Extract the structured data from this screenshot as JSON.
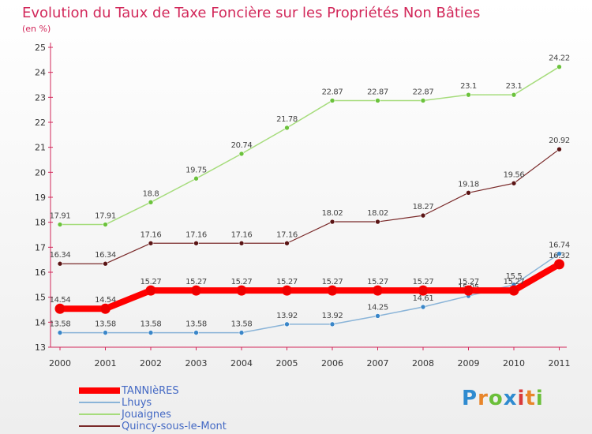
{
  "title": "Evolution du Taux de Taxe Foncière sur les Propriétés Non Bâties",
  "subtitle": "(en %)",
  "logo": "Proxiti",
  "chart_data": {
    "type": "line",
    "x": [
      "2000",
      "2001",
      "2002",
      "2003",
      "2004",
      "2005",
      "2006",
      "2007",
      "2008",
      "2009",
      "2010",
      "2011"
    ],
    "ylim": [
      13,
      25
    ],
    "yticks": [
      "13",
      "14",
      "15",
      "16",
      "17",
      "18",
      "19",
      "20",
      "21",
      "22",
      "23",
      "24",
      "25"
    ],
    "grid": false,
    "legend": "bottom-left",
    "series": [
      {
        "name": "Jouaignes",
        "color": "#a6dc7c",
        "marker": "#6bc23c",
        "width": 1.5,
        "values": [
          17.91,
          17.91,
          18.8,
          19.75,
          20.74,
          21.78,
          22.87,
          22.87,
          22.87,
          23.1,
          23.1,
          24.22
        ],
        "labels": [
          "17.91",
          "17.91",
          "18.8",
          "19.75",
          "20.74",
          "21.78",
          "22.87",
          "22.87",
          "22.87",
          "23.1",
          "23.1",
          "24.22"
        ]
      },
      {
        "name": "Quincy-sous-le-Mont",
        "color": "#7a2a2a",
        "marker": "#5a1414",
        "width": 1.2,
        "values": [
          16.34,
          16.34,
          17.16,
          17.16,
          17.16,
          17.16,
          18.02,
          18.02,
          18.27,
          19.18,
          19.56,
          20.92
        ],
        "labels": [
          "16.34",
          "16.34",
          "17.16",
          "17.16",
          "17.16",
          "17.16",
          "18.02",
          "18.02",
          "18.27",
          "19.18",
          "19.56",
          "20.92"
        ]
      },
      {
        "name": "Lhuys",
        "color": "#8ab4d8",
        "marker": "#3a86c8",
        "width": 1.5,
        "values": [
          13.58,
          13.58,
          13.58,
          13.58,
          13.58,
          13.92,
          13.92,
          14.25,
          14.61,
          15.05,
          15.5,
          16.74
        ],
        "labels": [
          "13.58",
          "13.58",
          "13.58",
          "13.58",
          "13.58",
          "13.92",
          "13.92",
          "14.25",
          "14.61",
          "15.05",
          "15.5",
          "16.74"
        ]
      },
      {
        "name": "TANNIèRES",
        "color": "#ff0000",
        "marker": "#ee0000",
        "width": 8,
        "values": [
          14.54,
          14.54,
          15.27,
          15.27,
          15.27,
          15.27,
          15.27,
          15.27,
          15.27,
          15.27,
          15.27,
          16.32
        ],
        "labels": [
          "14.54",
          "14.54",
          "15.27",
          "15.27",
          "15.27",
          "15.27",
          "15.27",
          "15.27",
          "15.27",
          "15.27",
          "15.27",
          "16.32"
        ]
      }
    ],
    "legend_order": [
      "TANNIèRES",
      "Lhuys",
      "Jouaignes",
      "Quincy-sous-le-Mont"
    ]
  }
}
